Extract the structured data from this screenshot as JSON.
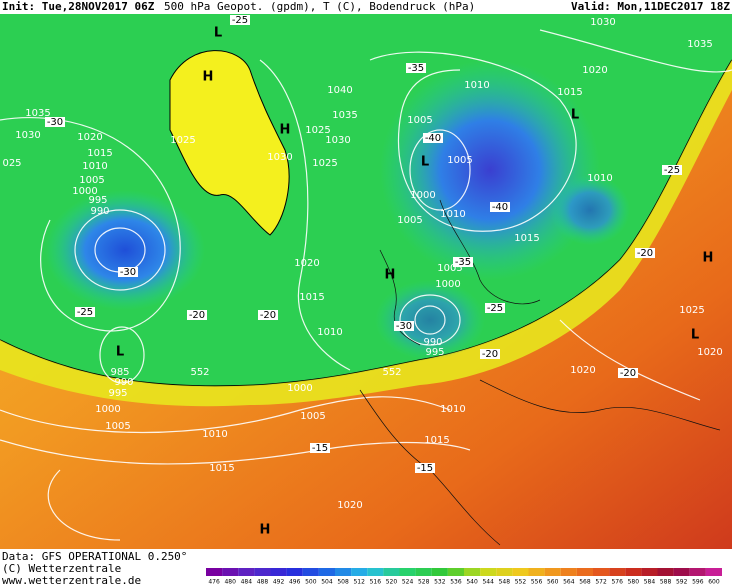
{
  "header": {
    "init": "Init: Tue,28NOV2017 06Z",
    "title": "500 hPa Geopot. (gpdm), T (C), Bodendruck (hPa)",
    "valid": "Valid: Mon,11DEC2017 18Z"
  },
  "footer": {
    "data": "Data: GFS OPERATIONAL 0.250°",
    "copyright": "(C) Wetterzentrale",
    "url": "www.wetterzentrale.de"
  },
  "colorbar": [
    "476",
    "480",
    "484",
    "488",
    "492",
    "496",
    "500",
    "504",
    "508",
    "512",
    "516",
    "520",
    "524",
    "528",
    "532",
    "536",
    "540",
    "544",
    "548",
    "552",
    "556",
    "560",
    "564",
    "568",
    "572",
    "576",
    "580",
    "584",
    "588",
    "592",
    "596",
    "600"
  ],
  "map_labels": [
    "1030",
    "1035",
    "1020",
    "1015",
    "L",
    "1035",
    "1030",
    "1020",
    "1015",
    "1010",
    "1005",
    "1000",
    "995",
    "990",
    "025",
    "H",
    "H",
    "L",
    "1025",
    "1030",
    "1025",
    "1030",
    "1035",
    "1040",
    "1025",
    "1010",
    "1005",
    "L",
    "1000",
    "1005",
    "1010",
    "1015",
    "1010",
    "1020",
    "1015",
    "1010",
    "H",
    "1005",
    "1000",
    "990",
    "995",
    "L",
    "985",
    "990",
    "995",
    "1000",
    "1005",
    "1000",
    "1005",
    "1010",
    "1010",
    "1015",
    "1015",
    "1020",
    "H",
    "1020",
    "1025",
    "1020",
    "L",
    "H",
    "1005",
    "-30",
    "-25",
    "-20",
    "-20",
    "-25",
    "-20",
    "-20",
    "-15",
    "-15",
    "-20",
    "-25",
    "-40",
    "-40",
    "-35",
    "-30",
    "-35",
    "-30",
    "-25",
    "552",
    "552"
  ]
}
